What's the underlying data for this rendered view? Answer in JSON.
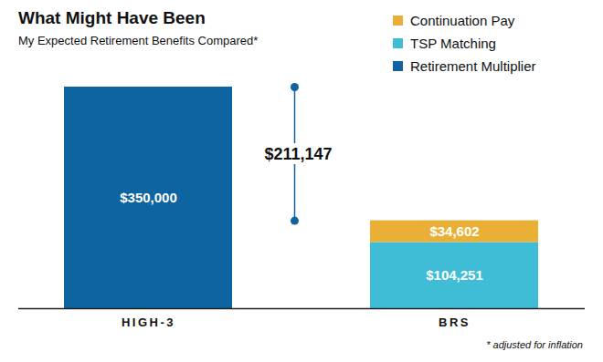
{
  "chart_data": {
    "type": "bar",
    "stacked": true,
    "title": "What Might Have Been",
    "subtitle": "My Expected Retirement Benefits Compared*",
    "footnote": "* adjusted for inflation",
    "categories": [
      "HIGH-3",
      "BRS"
    ],
    "series": [
      {
        "name": "Continuation Pay",
        "color": "#e9b035",
        "values": [
          null,
          34602
        ],
        "value_labels": [
          null,
          "$34,602"
        ]
      },
      {
        "name": "TSP Matching",
        "color": "#3fbdd6",
        "values": [
          null,
          104251
        ],
        "value_labels": [
          null,
          "$104,251"
        ]
      },
      {
        "name": "Retirement Multiplier",
        "color": "#0d64a0",
        "values": [
          350000,
          null
        ],
        "value_labels": [
          "$350,000",
          null
        ]
      }
    ],
    "annotation": {
      "text": "$211,147",
      "value": 211147
    },
    "ylim": [
      0,
      350000
    ],
    "data_labels": true,
    "tick_labels": "x",
    "grid": false,
    "legend": "top-right"
  }
}
